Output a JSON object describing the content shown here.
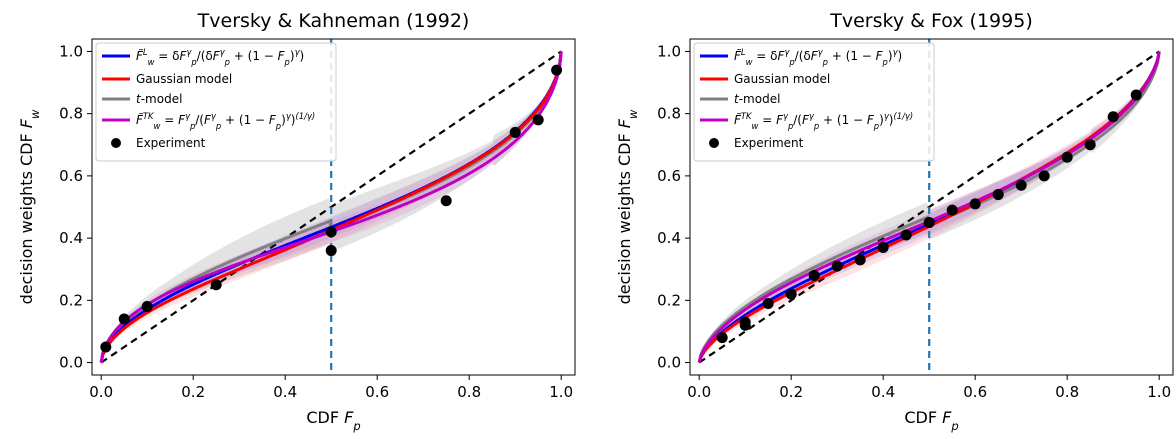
{
  "chart_data": [
    {
      "type": "line",
      "title": "Tversky & Kahneman (1992)",
      "xlabel": "CDF F_p",
      "ylabel": "decision weights CDF F_w",
      "xlim": [
        -0.02,
        1.03
      ],
      "ylim": [
        -0.04,
        1.04
      ],
      "xticks": [
        "0.0",
        "0.2",
        "0.4",
        "0.6",
        "0.8",
        "1.0"
      ],
      "yticks": [
        "0.0",
        "0.2",
        "0.4",
        "0.6",
        "0.8",
        "1.0"
      ],
      "grid": false,
      "legend_position": "top-left",
      "vline_x": 0.5,
      "series": [
        {
          "name": "F̃_w^L = δF_p^γ/(δF_p^γ + (1 − F_p)^γ)",
          "color": "#0000ff",
          "model": "linlog",
          "params": {
            "gamma": 0.6,
            "delta": 0.77
          }
        },
        {
          "name": "Gaussian model",
          "color": "#ff0000",
          "model": "gaussian",
          "params": {
            "gamma": 0.6,
            "delta": 0.74
          }
        },
        {
          "name": "t-model",
          "color": "#808080",
          "model": "tmodel",
          "params": {
            "gamma": 0.58,
            "delta": 0.78
          }
        },
        {
          "name": "F̃_w^TK = F_p^γ/(F_p^γ + (1 − F_p)^γ)^(1/γ)",
          "color": "#c000c0",
          "model": "tk",
          "params": {
            "gamma": 0.61
          }
        }
      ],
      "experiment": {
        "name": "Experiment",
        "x": [
          0.01,
          0.05,
          0.1,
          0.25,
          0.5,
          0.5,
          0.75,
          0.9,
          0.95,
          0.99
        ],
        "y": [
          0.05,
          0.14,
          0.18,
          0.25,
          0.42,
          0.36,
          0.52,
          0.74,
          0.78,
          0.94
        ]
      }
    },
    {
      "type": "line",
      "title": "Tversky & Fox (1995)",
      "xlabel": "CDF F_p",
      "ylabel": "decision weights CDF F_w",
      "xlim": [
        -0.02,
        1.03
      ],
      "ylim": [
        -0.04,
        1.04
      ],
      "xticks": [
        "0.0",
        "0.2",
        "0.4",
        "0.6",
        "0.8",
        "1.0"
      ],
      "yticks": [
        "0.0",
        "0.2",
        "0.4",
        "0.6",
        "0.8",
        "1.0"
      ],
      "grid": false,
      "legend_position": "top-left",
      "vline_x": 0.5,
      "series": [
        {
          "name": "F̃_w^L = δF_p^γ/(δF_p^γ + (1 − F_p)^γ)",
          "color": "#0000ff",
          "model": "linlog",
          "params": {
            "gamma": 0.68,
            "delta": 0.8
          }
        },
        {
          "name": "Gaussian model",
          "color": "#ff0000",
          "model": "gaussian",
          "params": {
            "gamma": 0.68,
            "delta": 0.78
          }
        },
        {
          "name": "t-model",
          "color": "#808080",
          "model": "tmodel",
          "params": {
            "gamma": 0.62,
            "delta": 0.82
          }
        },
        {
          "name": "F̃_w^TK = F_p^γ/(F_p^γ + (1 − F_p)^γ)^(1/γ)",
          "color": "#c000c0",
          "model": "tk",
          "params": {
            "gamma": 0.69
          }
        }
      ],
      "experiment": {
        "name": "Experiment",
        "x": [
          0.05,
          0.1,
          0.1,
          0.15,
          0.2,
          0.25,
          0.3,
          0.35,
          0.4,
          0.45,
          0.5,
          0.55,
          0.6,
          0.65,
          0.7,
          0.75,
          0.8,
          0.85,
          0.9,
          0.95
        ],
        "y": [
          0.08,
          0.12,
          0.13,
          0.19,
          0.22,
          0.28,
          0.31,
          0.33,
          0.37,
          0.41,
          0.45,
          0.49,
          0.51,
          0.54,
          0.57,
          0.6,
          0.66,
          0.7,
          0.79,
          0.86
        ]
      }
    }
  ]
}
